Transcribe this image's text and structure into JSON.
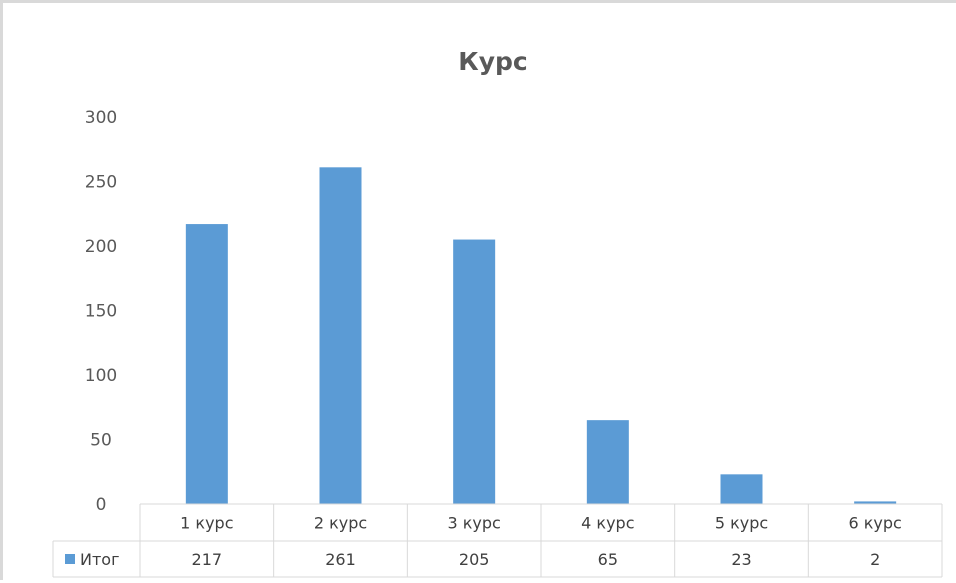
{
  "chart_data": {
    "type": "bar",
    "title": "Курс",
    "categories": [
      "1 курс",
      "2 курс",
      "3 курс",
      "4 курс",
      "5 курс",
      "6 курс"
    ],
    "series": [
      {
        "name": "Итог",
        "values": [
          217,
          261,
          205,
          65,
          23,
          2
        ],
        "color": "#5b9bd5"
      }
    ],
    "ylim": [
      0,
      300
    ],
    "yticks": [
      0,
      50,
      100,
      150,
      200,
      250,
      300
    ],
    "grid": false,
    "legend": "data-table",
    "data_table": true
  }
}
